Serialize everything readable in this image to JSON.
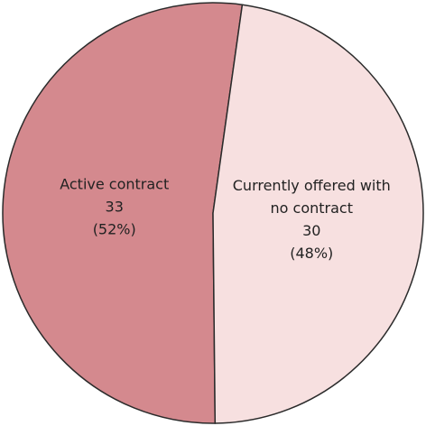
{
  "chart_data": {
    "type": "pie",
    "categories": [
      "Active contract",
      "Currently offered with no contract"
    ],
    "values": [
      33,
      30
    ],
    "percentage_labels": [
      "(52%)",
      "(48%)"
    ],
    "colors": [
      "#d4898e",
      "#f7e0e0"
    ]
  }
}
